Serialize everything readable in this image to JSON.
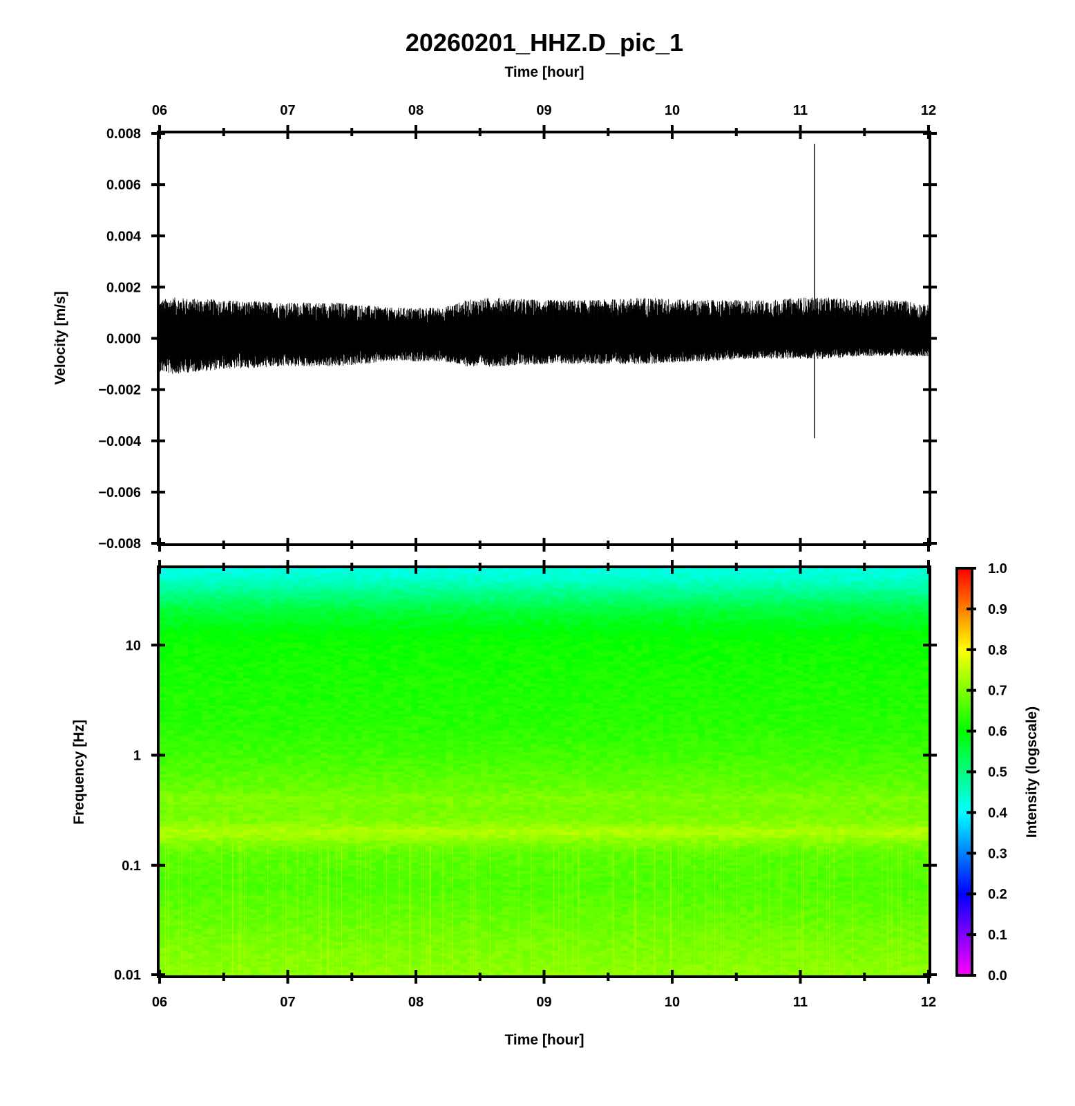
{
  "title": "20260201_HHZ.D_pic_1",
  "chart_data": [
    {
      "type": "line",
      "panel": "waveform",
      "x_axis_label": "Time [hour]",
      "x_axis_position": "top",
      "ylabel": "Velocity [m/s]",
      "xlim": [
        6,
        12
      ],
      "ylim": [
        -0.008,
        0.008
      ],
      "x_ticks": [
        "06",
        "07",
        "08",
        "09",
        "10",
        "11",
        "12"
      ],
      "y_ticks": [
        "0.008",
        "0.006",
        "0.004",
        "0.002",
        "0.000",
        "−0.002",
        "−0.004",
        "−0.006",
        "−0.008"
      ],
      "noise_envelope": {
        "x": [
          6.0,
          6.1,
          6.5,
          7.0,
          7.4,
          7.8,
          8.2,
          8.4,
          8.6,
          9.0,
          9.4,
          9.8,
          10.2,
          10.6,
          10.8,
          11.0,
          11.2,
          11.5,
          11.8,
          12.0
        ],
        "upper": [
          0.0015,
          0.0016,
          0.0015,
          0.0014,
          0.0014,
          0.0012,
          0.0012,
          0.0015,
          0.0016,
          0.0015,
          0.0015,
          0.0016,
          0.0015,
          0.0015,
          0.0015,
          0.0016,
          0.0016,
          0.0015,
          0.0015,
          0.0013
        ],
        "lower": [
          -0.0013,
          -0.0014,
          -0.0012,
          -0.0011,
          -0.0011,
          -0.0009,
          -0.0009,
          -0.0011,
          -0.0011,
          -0.001,
          -0.001,
          -0.001,
          -0.0009,
          -0.0008,
          -0.0008,
          -0.0008,
          -0.0008,
          -0.0007,
          -0.0007,
          -0.0007
        ]
      },
      "spikes": [
        {
          "x": 11.11,
          "y_max": 0.0076,
          "y_min": -0.0039
        }
      ],
      "line_color": "#000000"
    },
    {
      "type": "heatmap",
      "panel": "spectrogram",
      "xlabel": "Time [hour]",
      "ylabel": "Frequency [Hz]",
      "xlim": [
        6,
        12
      ],
      "ylim": [
        0.01,
        50
      ],
      "y_scale": "log",
      "x_ticks": [
        "06",
        "07",
        "08",
        "09",
        "10",
        "11",
        "12"
      ],
      "y_ticks": [
        {
          "value": 10,
          "label": "10"
        },
        {
          "value": 1,
          "label": "1"
        },
        {
          "value": 0.1,
          "label": "0.1"
        },
        {
          "value": 0.01,
          "label": "0.01"
        }
      ],
      "intensity_by_log_frequency": {
        "log10_hz": [
          1.7,
          1.6,
          1.45,
          1.3,
          1.1,
          1.0,
          0.7,
          0.3,
          0.0,
          -0.1,
          -0.2,
          -0.3,
          -0.4,
          -0.5,
          -0.6,
          -0.7,
          -0.8,
          -0.9,
          -1.2,
          -1.5,
          -1.8,
          -2.0
        ],
        "intensity": [
          0.42,
          0.44,
          0.5,
          0.56,
          0.6,
          0.61,
          0.62,
          0.63,
          0.65,
          0.66,
          0.67,
          0.68,
          0.7,
          0.69,
          0.7,
          0.74,
          0.7,
          0.67,
          0.66,
          0.68,
          0.7,
          0.71
        ]
      },
      "colorbar": {
        "label": "Intensity (logscale)",
        "range": [
          0.0,
          1.0
        ],
        "ticks": [
          "1.0",
          "0.9",
          "0.8",
          "0.7",
          "0.6",
          "0.5",
          "0.4",
          "0.3",
          "0.2",
          "0.1",
          "0.0"
        ],
        "colormap": [
          "#ff00ff",
          "#0000ff",
          "#00ffff",
          "#00ff00",
          "#ffff00",
          "#ff0000"
        ]
      }
    }
  ]
}
